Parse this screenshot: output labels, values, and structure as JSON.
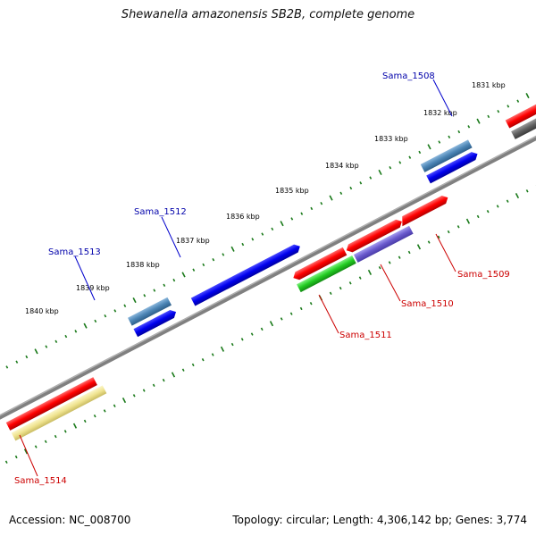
{
  "title": "Shewanella amazonensis SB2B, complete genome",
  "footer": {
    "accession": "Accession: NC_008700",
    "stats": "Topology: circular; Length: 4,306,142 bp; Genes: 3,774"
  },
  "colors": {
    "backbone": "#808080",
    "tick": "#1a7a1a",
    "label_forward": "#0000aa",
    "label_reverse": "#cc0000"
  },
  "ticks": [
    "1831 kbp",
    "1832 kbp",
    "1833 kbp",
    "1834 kbp",
    "1835 kbp",
    "1836 kbp",
    "1837 kbp",
    "1838 kbp",
    "1839 kbp",
    "1840 kbp"
  ],
  "gene_labels": {
    "sama_1508": "Sama_1508",
    "sama_1509": "Sama_1509",
    "sama_1510": "Sama_1510",
    "sama_1511": "Sama_1511",
    "sama_1512": "Sama_1512",
    "sama_1513": "Sama_1513",
    "sama_1514": "Sama_1514"
  }
}
